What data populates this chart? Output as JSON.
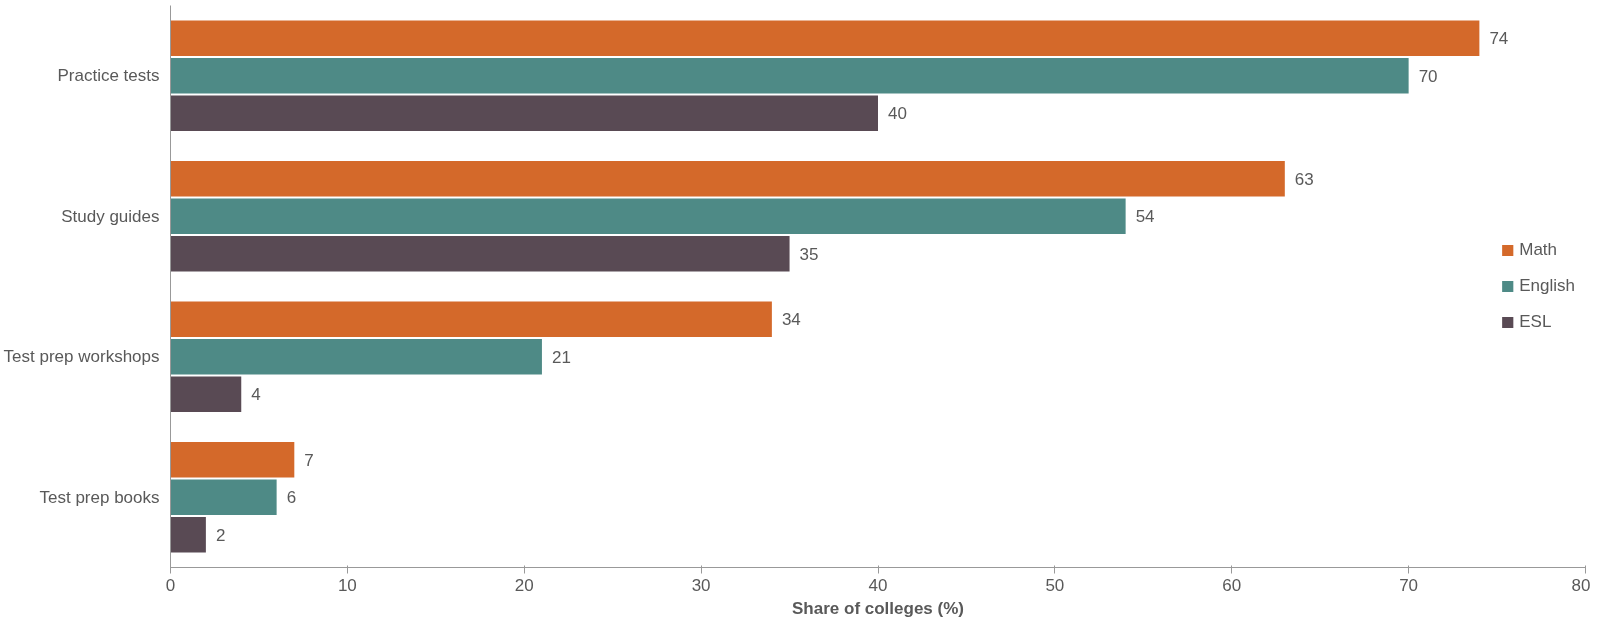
{
  "chart_data": {
    "type": "bar",
    "orientation": "horizontal",
    "xlabel": "Share of colleges (%)",
    "categories": [
      "Practice tests",
      "Study guides",
      "Test prep workshops",
      "Test prep books"
    ],
    "series": [
      {
        "name": "Math",
        "color": "#d4692a",
        "values": [
          74,
          63,
          34,
          7
        ]
      },
      {
        "name": "English",
        "color": "#4e8a86",
        "values": [
          70,
          54,
          21,
          6
        ]
      },
      {
        "name": "ESL",
        "color": "#594a54",
        "values": [
          40,
          35,
          4,
          2
        ]
      }
    ],
    "xlim": [
      0,
      80
    ],
    "xticks": [
      0,
      10,
      20,
      30,
      40,
      50,
      60,
      70,
      80
    ],
    "data_labels": true,
    "legend": "right",
    "grid": false
  }
}
